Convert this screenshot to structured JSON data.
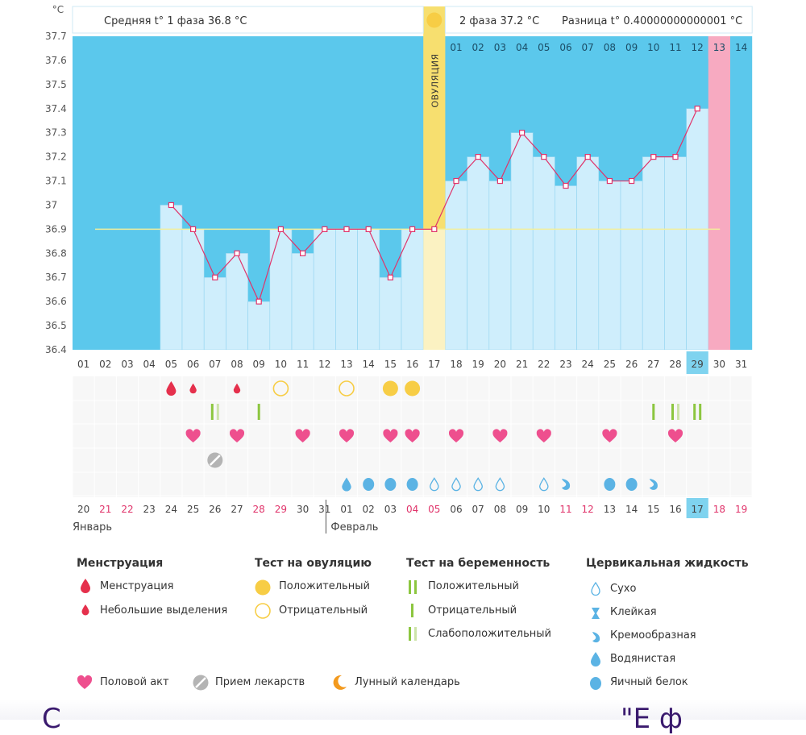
{
  "chart_data": {
    "type": "line",
    "unit_label": "°C",
    "ylim": [
      36.4,
      37.7
    ],
    "y_ticks": [
      "36.4",
      "36.5",
      "36.6",
      "36.7",
      "36.8",
      "36.9",
      "37",
      "37.1",
      "37.2",
      "37.3",
      "37.4",
      "37.5",
      "37.6",
      "37.7"
    ],
    "header": {
      "phase1": "Средняя t° 1 фаза 36.8 °C",
      "phase2": "2 фаза 37.2 °C",
      "diff": "Разница t° 0.40000000000001 °C"
    },
    "ovulation_label": "ОВУЛЯЦИЯ",
    "ovulation_day_index": 16,
    "coverline": 36.9,
    "cycle_days": [
      "01",
      "02",
      "03",
      "04",
      "05",
      "06",
      "07",
      "08",
      "09",
      "10",
      "11",
      "12",
      "13",
      "14",
      "15",
      "16",
      "17",
      "18",
      "19",
      "20",
      "21",
      "22",
      "23",
      "24",
      "25",
      "26",
      "27",
      "28",
      "29",
      "30",
      "31"
    ],
    "current_cycle_day_index": 28,
    "phase2_day_labels": [
      "01",
      "02",
      "03",
      "04",
      "05",
      "06",
      "07",
      "08",
      "09",
      "10",
      "11",
      "12",
      "13",
      "14"
    ],
    "phase2_start_index": 17,
    "phase2_highlight_index": 12,
    "temperatures": [
      null,
      null,
      null,
      null,
      37.0,
      36.9,
      36.7,
      36.8,
      36.6,
      36.9,
      36.8,
      36.9,
      36.9,
      36.9,
      36.7,
      36.9,
      36.9,
      37.1,
      37.2,
      37.1,
      37.3,
      37.2,
      37.08,
      37.2,
      37.1,
      37.1,
      37.2,
      37.2,
      37.4,
      null,
      null
    ],
    "calendar_dates": [
      "20",
      "21",
      "22",
      "23",
      "24",
      "25",
      "26",
      "27",
      "28",
      "29",
      "30",
      "31",
      "01",
      "02",
      "03",
      "04",
      "05",
      "06",
      "07",
      "08",
      "09",
      "10",
      "11",
      "12",
      "13",
      "14",
      "15",
      "16",
      "17",
      "18",
      "19"
    ],
    "red_date_indices": [
      1,
      2,
      8,
      9,
      15,
      16,
      22,
      23,
      29,
      30
    ],
    "current_date_index": 28,
    "months": [
      {
        "name": "Январь",
        "start_index": 0
      },
      {
        "name": "Февраль",
        "start_index": 12
      }
    ],
    "rows": {
      "menstruation": [
        {
          "day": 4,
          "kind": "full"
        },
        {
          "day": 5,
          "kind": "light"
        },
        {
          "day": 7,
          "kind": "light"
        }
      ],
      "ovulation_test": [
        {
          "day": 9,
          "kind": "negative"
        },
        {
          "day": 12,
          "kind": "negative"
        },
        {
          "day": 14,
          "kind": "positive"
        },
        {
          "day": 15,
          "kind": "positive"
        }
      ],
      "pregnancy_test": [
        {
          "day": 6,
          "kind": "weak"
        },
        {
          "day": 8,
          "kind": "negative"
        },
        {
          "day": 26,
          "kind": "negative"
        },
        {
          "day": 27,
          "kind": "weak"
        },
        {
          "day": 28,
          "kind": "positive"
        }
      ],
      "intercourse": [
        5,
        7,
        10,
        12,
        14,
        15,
        17,
        19,
        21,
        24,
        27
      ],
      "medication": [
        6
      ],
      "cervical_fluid": [
        {
          "day": 12,
          "kind": "watery"
        },
        {
          "day": 13,
          "kind": "eggwhite"
        },
        {
          "day": 14,
          "kind": "eggwhite"
        },
        {
          "day": 15,
          "kind": "eggwhite"
        },
        {
          "day": 16,
          "kind": "dry"
        },
        {
          "day": 17,
          "kind": "dry"
        },
        {
          "day": 18,
          "kind": "dry"
        },
        {
          "day": 19,
          "kind": "dry"
        },
        {
          "day": 21,
          "kind": "dry"
        },
        {
          "day": 22,
          "kind": "creamy"
        },
        {
          "day": 24,
          "kind": "eggwhite"
        },
        {
          "day": 25,
          "kind": "eggwhite"
        },
        {
          "day": 26,
          "kind": "creamy"
        }
      ]
    }
  },
  "colors": {
    "sky": "#5bc8ec",
    "bar": "#cfeefc",
    "bar_stroke": "#93d4f0",
    "line": "#e0336a",
    "ovulation": "#f7df6f",
    "ovulation_light": "#fbf2c2",
    "pink_day": "#f7aac1",
    "grid_label": "#555555",
    "red_date": "#e0336a",
    "highlight_date": "#7fd3ef",
    "drop_red": "#e5304c",
    "ovu_yellow": "#f7cd45",
    "test_green": "#8cc63f",
    "test_light": "#cde4a9",
    "heart": "#ee4f8e",
    "pill": "#b4b4b4",
    "cf_blue": "#5bb3e4",
    "moon": "#f39a1e"
  },
  "legend": {
    "menstruation": {
      "title": "Менструация",
      "items": [
        "Менструация",
        "Небольшие выделения"
      ]
    },
    "ovulation_test": {
      "title": "Тест на овуляцию",
      "items": [
        "Положительный",
        "Отрицательный"
      ]
    },
    "pregnancy_test": {
      "title": "Тест на беременность",
      "items": [
        "Положительный",
        "Отрицательный",
        "Слабоположительный"
      ]
    },
    "cervical_fluid": {
      "title": "Цервикальная жидкость",
      "items": [
        "Сухо",
        "Клейкая",
        "Кремообразная",
        "Водянистая",
        "Яичный белок"
      ]
    },
    "other": [
      "Половой акт",
      "Прием лекарств",
      "Лунный календарь"
    ]
  },
  "icons": [
    "drop-icon",
    "small-drop-icon",
    "ovulation-positive-icon",
    "ovulation-negative-icon",
    "pregnancy-positive-icon",
    "pregnancy-negative-icon",
    "pregnancy-weak-icon",
    "dry-icon",
    "sticky-icon",
    "creamy-icon",
    "watery-icon",
    "eggwhite-icon",
    "heart-icon",
    "pill-icon",
    "moon-icon"
  ],
  "footer_text_left": "С",
  "footer_text_right": "\"Е  ф"
}
